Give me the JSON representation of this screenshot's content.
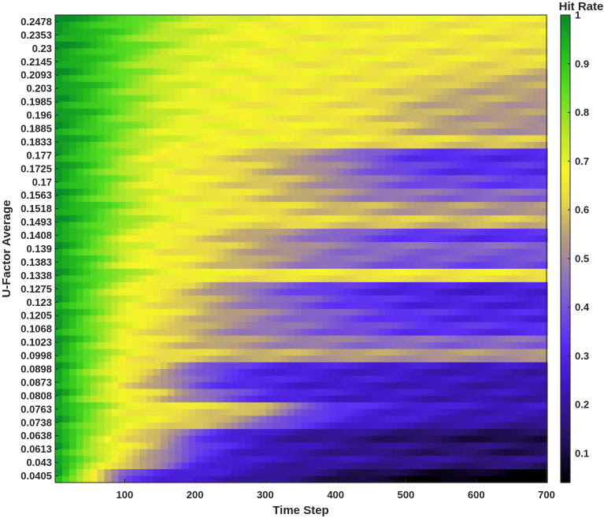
{
  "chart_data": {
    "type": "heatmap",
    "title": "",
    "xlabel": "Time Step",
    "ylabel": "U-Factor Average",
    "colorbar_label": "Hit Rate",
    "xlim": [
      1,
      700
    ],
    "x_ticks": [
      100,
      200,
      300,
      400,
      500,
      600,
      700
    ],
    "colorbar_range": [
      0.04,
      1
    ],
    "colorbar_ticks": [
      0.1,
      0.2,
      0.3,
      0.4,
      0.5,
      0.6,
      0.7,
      0.8,
      0.9,
      1
    ],
    "colormap": [
      "#000000",
      "#2a1470",
      "#3f18c8",
      "#5a2ef5",
      "#8c6fc0",
      "#b8a07a",
      "#e8d84a",
      "#f5f52a",
      "#c0e82a",
      "#56dc22",
      "#22b81e",
      "#0a8a2a"
    ],
    "colormap_stops": [
      0.04,
      0.15,
      0.25,
      0.33,
      0.45,
      0.55,
      0.62,
      0.68,
      0.75,
      0.85,
      0.93,
      1.0
    ],
    "y_tick_labels": [
      "0.2478",
      "0.2353",
      "0.23",
      "0.2145",
      "0.2093",
      "0.203",
      "0.1985",
      "0.196",
      "0.1885",
      "0.1833",
      "0.177",
      "0.1725",
      "0.17",
      "0.1563",
      "0.1518",
      "0.1493",
      "0.1408",
      "0.139",
      "0.1383",
      "0.1338",
      "0.1275",
      "0.123",
      "0.1205",
      "0.1068",
      "0.1023",
      "0.0998",
      "0.0898",
      "0.0873",
      "0.0808",
      "0.0763",
      "0.0738",
      "0.0638",
      "0.0613",
      "0.043",
      "0.0405"
    ],
    "row_count": 70,
    "data_description": "Hit rate per U-Factor row over time steps; each row decays from ~1 (early) toward a final value.",
    "row_profiles": {
      "time_points": [
        1,
        50,
        100,
        150,
        200,
        250,
        300,
        350,
        400,
        450,
        500,
        550,
        600,
        650,
        700
      ],
      "rows": [
        {
          "u_factor": "0.2478",
          "values": [
            1,
            0.95,
            0.88,
            0.8,
            0.75,
            0.72,
            0.7,
            0.69,
            0.68,
            0.68,
            0.68,
            0.67,
            0.67,
            0.67,
            0.67
          ]
        },
        {
          "u_factor": "0.2353",
          "values": [
            1,
            0.94,
            0.86,
            0.78,
            0.74,
            0.71,
            0.69,
            0.68,
            0.68,
            0.67,
            0.67,
            0.66,
            0.66,
            0.66,
            0.66
          ]
        },
        {
          "u_factor": "0.23",
          "values": [
            1,
            0.95,
            0.87,
            0.79,
            0.74,
            0.71,
            0.69,
            0.68,
            0.68,
            0.67,
            0.67,
            0.66,
            0.66,
            0.65,
            0.65
          ]
        },
        {
          "u_factor": "0.2145",
          "values": [
            1,
            0.93,
            0.84,
            0.76,
            0.72,
            0.7,
            0.69,
            0.68,
            0.67,
            0.67,
            0.66,
            0.66,
            0.65,
            0.65,
            0.64
          ]
        },
        {
          "u_factor": "0.2093",
          "values": [
            1,
            0.93,
            0.84,
            0.76,
            0.72,
            0.7,
            0.69,
            0.68,
            0.67,
            0.66,
            0.65,
            0.64,
            0.62,
            0.6,
            0.58
          ]
        },
        {
          "u_factor": "0.203",
          "values": [
            1,
            0.93,
            0.83,
            0.75,
            0.71,
            0.69,
            0.68,
            0.67,
            0.66,
            0.65,
            0.63,
            0.6,
            0.58,
            0.57,
            0.56
          ]
        },
        {
          "u_factor": "0.1985",
          "values": [
            1,
            0.93,
            0.83,
            0.75,
            0.71,
            0.69,
            0.68,
            0.67,
            0.66,
            0.64,
            0.6,
            0.58,
            0.57,
            0.56,
            0.55
          ]
        },
        {
          "u_factor": "0.196",
          "values": [
            1,
            0.93,
            0.83,
            0.75,
            0.71,
            0.69,
            0.68,
            0.67,
            0.66,
            0.64,
            0.6,
            0.57,
            0.56,
            0.55,
            0.54
          ]
        },
        {
          "u_factor": "0.1885",
          "values": [
            1,
            0.92,
            0.82,
            0.74,
            0.7,
            0.69,
            0.68,
            0.67,
            0.66,
            0.64,
            0.6,
            0.57,
            0.55,
            0.54,
            0.53
          ]
        },
        {
          "u_factor": "0.1833",
          "values": [
            1,
            0.92,
            0.81,
            0.73,
            0.7,
            0.69,
            0.68,
            0.67,
            0.66,
            0.65,
            0.64,
            0.63,
            0.62,
            0.61,
            0.6
          ]
        },
        {
          "u_factor": "0.177",
          "values": [
            1,
            0.9,
            0.78,
            0.7,
            0.67,
            0.64,
            0.6,
            0.55,
            0.5,
            0.42,
            0.36,
            0.34,
            0.33,
            0.33,
            0.33
          ]
        },
        {
          "u_factor": "0.1725",
          "values": [
            1,
            0.9,
            0.78,
            0.7,
            0.67,
            0.64,
            0.6,
            0.55,
            0.5,
            0.44,
            0.38,
            0.35,
            0.34,
            0.34,
            0.34
          ]
        },
        {
          "u_factor": "0.17",
          "values": [
            1,
            0.9,
            0.78,
            0.7,
            0.67,
            0.64,
            0.61,
            0.57,
            0.52,
            0.46,
            0.42,
            0.4,
            0.38,
            0.37,
            0.36
          ]
        },
        {
          "u_factor": "0.1563",
          "values": [
            1,
            0.9,
            0.78,
            0.7,
            0.67,
            0.65,
            0.62,
            0.58,
            0.54,
            0.5,
            0.47,
            0.46,
            0.45,
            0.45,
            0.45
          ]
        },
        {
          "u_factor": "0.1518",
          "values": [
            1,
            0.91,
            0.8,
            0.72,
            0.68,
            0.66,
            0.64,
            0.62,
            0.6,
            0.58,
            0.56,
            0.55,
            0.55,
            0.54,
            0.54
          ]
        },
        {
          "u_factor": "0.1493",
          "values": [
            1,
            0.91,
            0.8,
            0.72,
            0.68,
            0.66,
            0.65,
            0.64,
            0.63,
            0.62,
            0.61,
            0.6,
            0.6,
            0.6,
            0.6
          ]
        },
        {
          "u_factor": "0.1408",
          "values": [
            1,
            0.88,
            0.74,
            0.68,
            0.65,
            0.6,
            0.55,
            0.5,
            0.45,
            0.4,
            0.37,
            0.35,
            0.34,
            0.34,
            0.33
          ]
        },
        {
          "u_factor": "0.139",
          "values": [
            1,
            0.88,
            0.74,
            0.68,
            0.65,
            0.6,
            0.56,
            0.52,
            0.48,
            0.46,
            0.45,
            0.45,
            0.44,
            0.44,
            0.44
          ]
        },
        {
          "u_factor": "0.1383",
          "values": [
            1,
            0.88,
            0.74,
            0.68,
            0.65,
            0.6,
            0.55,
            0.5,
            0.46,
            0.44,
            0.42,
            0.41,
            0.4,
            0.4,
            0.39
          ]
        },
        {
          "u_factor": "0.1338",
          "values": [
            1,
            0.9,
            0.78,
            0.71,
            0.68,
            0.67,
            0.66,
            0.66,
            0.66,
            0.66,
            0.66,
            0.66,
            0.66,
            0.66,
            0.66
          ]
        },
        {
          "u_factor": "0.1275",
          "values": [
            1,
            0.86,
            0.72,
            0.66,
            0.6,
            0.52,
            0.45,
            0.4,
            0.36,
            0.33,
            0.31,
            0.3,
            0.29,
            0.29,
            0.29
          ]
        },
        {
          "u_factor": "0.123",
          "values": [
            1,
            0.86,
            0.72,
            0.66,
            0.6,
            0.53,
            0.47,
            0.42,
            0.38,
            0.35,
            0.32,
            0.31,
            0.3,
            0.3,
            0.3
          ]
        },
        {
          "u_factor": "0.1205",
          "values": [
            1,
            0.86,
            0.72,
            0.66,
            0.61,
            0.55,
            0.5,
            0.46,
            0.42,
            0.38,
            0.35,
            0.33,
            0.32,
            0.31,
            0.31
          ]
        },
        {
          "u_factor": "0.1068",
          "values": [
            1,
            0.85,
            0.7,
            0.64,
            0.58,
            0.52,
            0.48,
            0.45,
            0.42,
            0.39,
            0.36,
            0.35,
            0.34,
            0.34,
            0.34
          ]
        },
        {
          "u_factor": "0.1023",
          "values": [
            1,
            0.85,
            0.7,
            0.64,
            0.6,
            0.56,
            0.53,
            0.5,
            0.48,
            0.47,
            0.46,
            0.45,
            0.45,
            0.45,
            0.45
          ]
        },
        {
          "u_factor": "0.0998",
          "values": [
            1,
            0.85,
            0.7,
            0.65,
            0.62,
            0.6,
            0.58,
            0.57,
            0.56,
            0.55,
            0.55,
            0.54,
            0.54,
            0.54,
            0.54
          ]
        },
        {
          "u_factor": "0.0898",
          "values": [
            1,
            0.82,
            0.68,
            0.6,
            0.45,
            0.36,
            0.32,
            0.3,
            0.29,
            0.28,
            0.27,
            0.26,
            0.25,
            0.25,
            0.24
          ]
        },
        {
          "u_factor": "0.0873",
          "values": [
            1,
            0.82,
            0.66,
            0.56,
            0.42,
            0.35,
            0.31,
            0.29,
            0.28,
            0.27,
            0.26,
            0.25,
            0.24,
            0.24,
            0.23
          ]
        },
        {
          "u_factor": "0.0808",
          "values": [
            1,
            0.82,
            0.68,
            0.62,
            0.5,
            0.4,
            0.34,
            0.3,
            0.28,
            0.27,
            0.26,
            0.25,
            0.24,
            0.24,
            0.23
          ]
        },
        {
          "u_factor": "0.0763",
          "values": [
            1,
            0.84,
            0.7,
            0.66,
            0.64,
            0.63,
            0.58,
            0.44,
            0.35,
            0.31,
            0.29,
            0.27,
            0.26,
            0.25,
            0.25
          ]
        },
        {
          "u_factor": "0.0738",
          "values": [
            1,
            0.84,
            0.7,
            0.66,
            0.62,
            0.55,
            0.45,
            0.36,
            0.31,
            0.28,
            0.26,
            0.24,
            0.23,
            0.22,
            0.21
          ]
        },
        {
          "u_factor": "0.0638",
          "values": [
            1,
            0.8,
            0.66,
            0.58,
            0.4,
            0.3,
            0.25,
            0.22,
            0.2,
            0.18,
            0.16,
            0.15,
            0.14,
            0.13,
            0.12
          ]
        },
        {
          "u_factor": "0.0613",
          "values": [
            1,
            0.8,
            0.66,
            0.56,
            0.38,
            0.3,
            0.26,
            0.23,
            0.21,
            0.19,
            0.18,
            0.17,
            0.16,
            0.15,
            0.15
          ]
        },
        {
          "u_factor": "0.043",
          "values": [
            1,
            0.78,
            0.64,
            0.5,
            0.34,
            0.28,
            0.25,
            0.23,
            0.22,
            0.21,
            0.2,
            0.19,
            0.18,
            0.18,
            0.17
          ]
        },
        {
          "u_factor": "0.0405",
          "values": [
            1,
            0.72,
            0.4,
            0.32,
            0.28,
            0.25,
            0.22,
            0.18,
            0.15,
            0.12,
            0.1,
            0.08,
            0.07,
            0.06,
            0.05
          ]
        }
      ]
    }
  }
}
